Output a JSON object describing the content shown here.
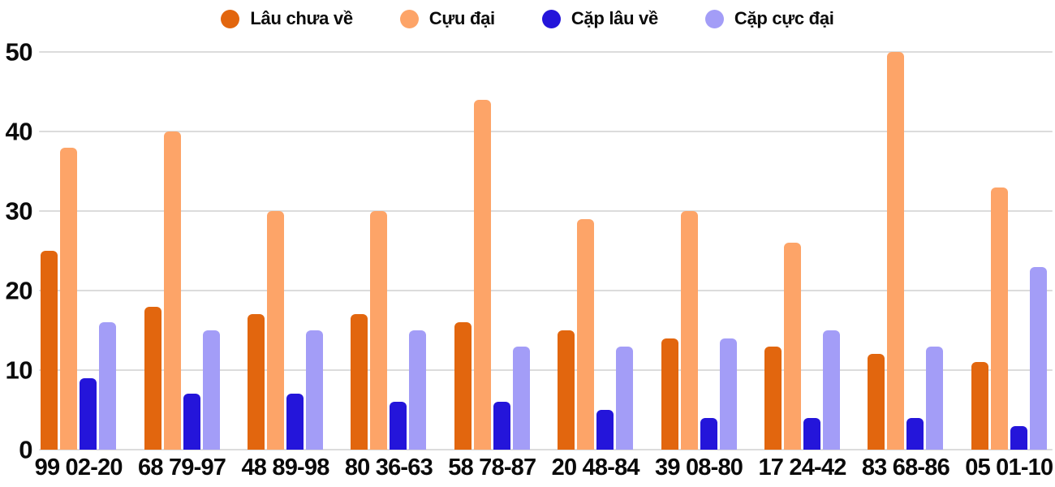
{
  "chart_data": {
    "type": "bar",
    "title": "",
    "categories": [
      "99 02-20",
      "68 79-97",
      "48 89-98",
      "80 36-63",
      "58 78-87",
      "20 48-84",
      "39 08-80",
      "17 24-42",
      "83 68-86",
      "05 01-10"
    ],
    "series": [
      {
        "name": "Lâu chưa về",
        "color": "#e2660e",
        "values": [
          25,
          18,
          17,
          17,
          16,
          15,
          14,
          13,
          12,
          11
        ]
      },
      {
        "name": "Cựu đại",
        "color": "#fda468",
        "values": [
          38,
          40,
          30,
          30,
          44,
          29,
          30,
          26,
          50,
          33
        ]
      },
      {
        "name": "Cặp lâu về",
        "color": "#2415da",
        "values": [
          9,
          7,
          7,
          6,
          6,
          5,
          4,
          4,
          4,
          3
        ]
      },
      {
        "name": "Cặp cực đại",
        "color": "#a39df7",
        "values": [
          16,
          15,
          15,
          15,
          13,
          13,
          14,
          15,
          13,
          23
        ]
      }
    ],
    "xlabel": "",
    "ylabel": "",
    "ylim": [
      0,
      50
    ],
    "yticks": [
      0,
      10,
      20,
      30,
      40,
      50
    ],
    "grid": true,
    "legend_position": "top",
    "colors": {
      "background": "#ffffff",
      "gridline": "#dcdcdc",
      "text": "#0b0b0b"
    }
  }
}
